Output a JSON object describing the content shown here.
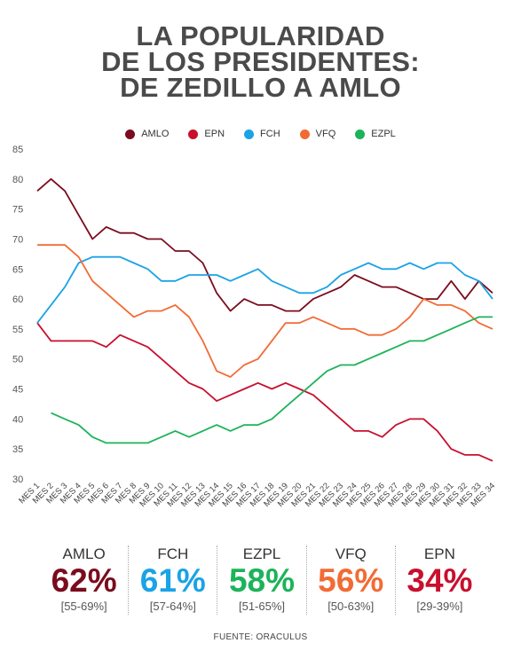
{
  "title_lines": [
    "LA POPULARIDAD",
    "DE LOS PRESIDENTES:",
    "DE ZEDILLO A AMLO"
  ],
  "source": "FUENTE: ORACULUS",
  "summary": [
    {
      "name": "AMLO",
      "value": "62%",
      "range": "[55-69%]",
      "color": "#7a0c1d"
    },
    {
      "name": "FCH",
      "value": "61%",
      "range": "[57-64%]",
      "color": "#1aa3e6"
    },
    {
      "name": "EZPL",
      "value": "58%",
      "range": "[51-65%]",
      "color": "#1cb35a"
    },
    {
      "name": "VFQ",
      "value": "56%",
      "range": "[50-63%]",
      "color": "#f26b35"
    },
    {
      "name": "EPN",
      "value": "34%",
      "range": "[29-39%]",
      "color": "#c8102e"
    }
  ],
  "chart_data": {
    "type": "line",
    "ylim": [
      30,
      85
    ],
    "yticks": [
      30,
      35,
      40,
      45,
      50,
      55,
      60,
      65,
      70,
      75,
      80,
      85
    ],
    "grid": false,
    "legend_position": "top-center",
    "categories": [
      "MES 1",
      "MES 2",
      "MES 3",
      "MES 4",
      "MES 5",
      "MES 6",
      "MES 7",
      "MES 8",
      "MES 9",
      "MES 10",
      "MES 11",
      "MES 12",
      "MES 13",
      "MES 14",
      "MES 15",
      "MES 16",
      "MES 17",
      "MES 18",
      "MES 19",
      "MES 20",
      "MES 21",
      "MES 22",
      "MES 23",
      "MES 24",
      "MES 25",
      "MES 26",
      "MES 27",
      "MES 28",
      "MES 29",
      "MES 30",
      "MES 31",
      "MES 32",
      "MES 33",
      "MES 34"
    ],
    "series": [
      {
        "name": "AMLO",
        "color": "#7a0c1d",
        "values": [
          78,
          80,
          78,
          74,
          70,
          72,
          71,
          71,
          70,
          70,
          68,
          68,
          66,
          61,
          58,
          60,
          59,
          59,
          58,
          58,
          60,
          61,
          62,
          64,
          63,
          62,
          62,
          61,
          60,
          60,
          63,
          60,
          63,
          61
        ]
      },
      {
        "name": "EPN",
        "color": "#c8102e",
        "values": [
          56,
          53,
          53,
          53,
          53,
          52,
          54,
          53,
          52,
          50,
          48,
          46,
          45,
          43,
          44,
          45,
          46,
          45,
          46,
          45,
          44,
          42,
          40,
          38,
          38,
          37,
          39,
          40,
          40,
          38,
          35,
          34,
          34,
          33
        ]
      },
      {
        "name": "FCH",
        "color": "#1aa3e6",
        "values": [
          56,
          59,
          62,
          66,
          67,
          67,
          67,
          66,
          65,
          63,
          63,
          64,
          64,
          64,
          63,
          64,
          65,
          63,
          62,
          61,
          61,
          62,
          64,
          65,
          66,
          65,
          65,
          66,
          65,
          66,
          66,
          64,
          63,
          60
        ]
      },
      {
        "name": "VFQ",
        "color": "#f26b35",
        "values": [
          69,
          69,
          69,
          67,
          63,
          61,
          59,
          57,
          58,
          58,
          59,
          57,
          53,
          48,
          47,
          49,
          50,
          53,
          56,
          56,
          57,
          56,
          55,
          55,
          54,
          54,
          55,
          57,
          60,
          59,
          59,
          58,
          56,
          55
        ]
      },
      {
        "name": "EZPL",
        "color": "#1cb35a",
        "values": [
          null,
          41,
          40,
          39,
          37,
          36,
          36,
          36,
          36,
          37,
          38,
          37,
          38,
          39,
          38,
          39,
          39,
          40,
          42,
          44,
          46,
          48,
          49,
          49,
          50,
          51,
          52,
          53,
          53,
          54,
          55,
          56,
          57,
          57
        ]
      }
    ]
  }
}
